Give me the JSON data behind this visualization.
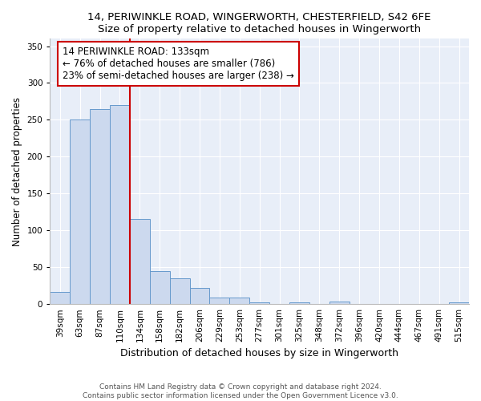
{
  "title_line1": "14, PERIWINKLE ROAD, WINGERWORTH, CHESTERFIELD, S42 6FE",
  "title_line2": "Size of property relative to detached houses in Wingerworth",
  "xlabel": "Distribution of detached houses by size in Wingerworth",
  "ylabel": "Number of detached properties",
  "categories": [
    "39sqm",
    "63sqm",
    "87sqm",
    "110sqm",
    "134sqm",
    "158sqm",
    "182sqm",
    "206sqm",
    "229sqm",
    "253sqm",
    "277sqm",
    "301sqm",
    "325sqm",
    "348sqm",
    "372sqm",
    "396sqm",
    "420sqm",
    "444sqm",
    "467sqm",
    "491sqm",
    "515sqm"
  ],
  "values": [
    16,
    250,
    265,
    270,
    115,
    45,
    35,
    22,
    9,
    9,
    2,
    0,
    2,
    0,
    4,
    0,
    0,
    0,
    0,
    0,
    2
  ],
  "bar_color": "#ccd9ee",
  "bar_edge_color": "#6699cc",
  "vline_x_pos": 3.5,
  "vline_color": "#cc0000",
  "annotation_text": "14 PERIWINKLE ROAD: 133sqm\n← 76% of detached houses are smaller (786)\n23% of semi-detached houses are larger (238) →",
  "annotation_box_color": "white",
  "annotation_box_edge_color": "#cc0000",
  "ylim": [
    0,
    360
  ],
  "yticks": [
    0,
    50,
    100,
    150,
    200,
    250,
    300,
    350
  ],
  "title_fontsize": 9.5,
  "subtitle_fontsize": 9,
  "xlabel_fontsize": 9,
  "ylabel_fontsize": 8.5,
  "tick_fontsize": 7.5,
  "annot_fontsize": 8.5,
  "footer_text": "Contains HM Land Registry data © Crown copyright and database right 2024.\nContains public sector information licensed under the Open Government Licence v3.0.",
  "footer_fontsize": 6.5,
  "plot_bg_color": "#e8eef8"
}
